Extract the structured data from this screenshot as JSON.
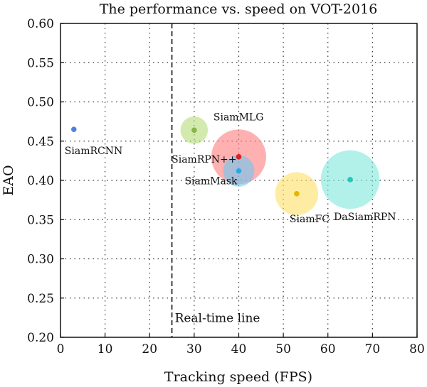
{
  "chart_data": {
    "type": "scatter",
    "title": "The performance vs. speed on VOT-2016",
    "xlabel": "Tracking speed (FPS)",
    "ylabel": "EAO",
    "xlim": [
      0,
      80
    ],
    "ylim": [
      0.2,
      0.6
    ],
    "xticks": [
      "0",
      "10",
      "20",
      "30",
      "40",
      "50",
      "60",
      "70",
      "80"
    ],
    "yticks": [
      "0.20",
      "0.25",
      "0.30",
      "0.35",
      "0.40",
      "0.45",
      "0.50",
      "0.55",
      "0.60"
    ],
    "grid": true,
    "points": [
      {
        "label": "SiamRCNN",
        "x": 3,
        "y": 0.465,
        "bubble": 0,
        "color": "#4f82e0",
        "bubble_color": "#4f82e0"
      },
      {
        "label": "SiamMLG",
        "x": 30,
        "y": 0.464,
        "bubble": 0.35,
        "color": "#8ab34a",
        "bubble_color": "#b5dc7a"
      },
      {
        "label": "SiamRPN++",
        "x": 40,
        "y": 0.43,
        "bubble": 0.7,
        "color": "#e02020",
        "bubble_color": "#ff7b7b"
      },
      {
        "label": "SiamMask",
        "x": 40,
        "y": 0.412,
        "bubble": 0.4,
        "color": "#2aa7e8",
        "bubble_color": "#6cc8f5"
      },
      {
        "label": "SiamFC",
        "x": 53,
        "y": 0.383,
        "bubble": 0.55,
        "color": "#e3b500",
        "bubble_color": "#ffe066"
      },
      {
        "label": "DaSiamRPN",
        "x": 65,
        "y": 0.401,
        "bubble": 0.75,
        "color": "#22c8b8",
        "bubble_color": "#7de8dc"
      }
    ],
    "reference_line": {
      "x": 25,
      "label": "Real-time line"
    }
  }
}
